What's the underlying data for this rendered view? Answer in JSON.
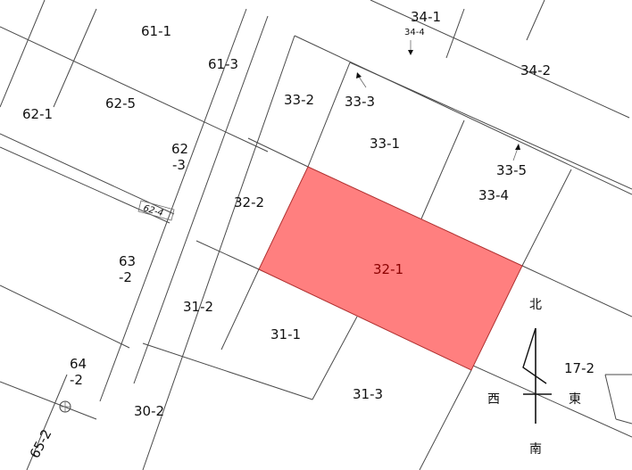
{
  "map": {
    "highlight_color": "#ff7f7f",
    "highlighted_parcel": "32-1",
    "parcels": {
      "p61_1": "61-1",
      "p61_3": "61-3",
      "p62_1": "62-1",
      "p62_5": "62-5",
      "p62_3a": "62",
      "p62_3b": "-3",
      "p62_4": "62-4",
      "p63_2a": "63",
      "p63_2b": "-2",
      "p64_2a": "64",
      "p64_2b": "-2",
      "p65_2": "65-2",
      "p30_2": "30-2",
      "p31_1": "31-1",
      "p31_2": "31-2",
      "p31_3": "31-3",
      "p32_1": "32-1",
      "p32_2": "32-2",
      "p33_1": "33-1",
      "p33_2": "33-2",
      "p33_3": "33-3",
      "p33_4": "33-4",
      "p33_5": "33-5",
      "p34_1": "34-1",
      "p34_4": "34-4",
      "p34_2": "34-2",
      "p17_2": "17-2"
    },
    "compass": {
      "north": "北",
      "south": "南",
      "east": "東",
      "west": "西"
    }
  }
}
